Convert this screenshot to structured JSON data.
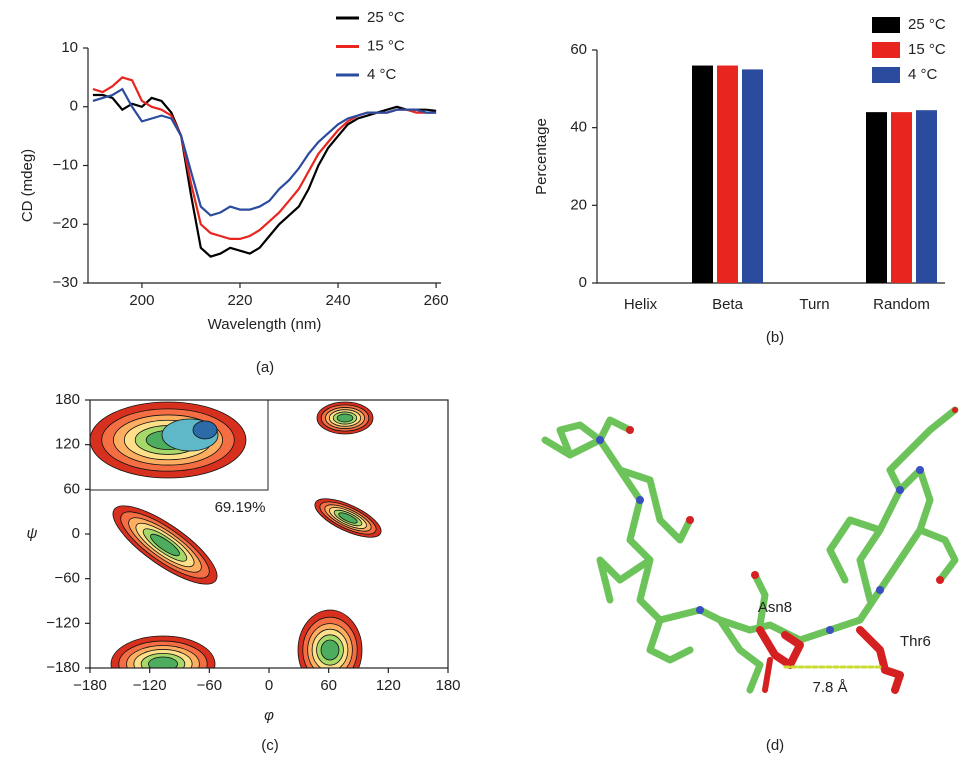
{
  "chart_data": [
    {
      "type": "line",
      "caption": "(a)",
      "x_label": "Wavelength (nm)",
      "y_label": "CD (mdeg)",
      "xlim": [
        189,
        261
      ],
      "ylim": [
        -30,
        10
      ],
      "xticks": [
        200,
        220,
        240,
        260
      ],
      "yticks": [
        {
          "value": -30,
          "label": "−30"
        },
        {
          "value": -20,
          "label": "−20"
        },
        {
          "value": -10,
          "label": "−10"
        },
        0,
        10
      ],
      "legend": "upper right",
      "x": [
        190,
        192,
        194,
        196,
        198,
        200,
        202,
        204,
        206,
        208,
        210,
        212,
        214,
        216,
        218,
        220,
        222,
        224,
        226,
        228,
        230,
        232,
        234,
        236,
        238,
        240,
        242,
        244,
        246,
        248,
        250,
        252,
        254,
        256,
        258,
        260
      ],
      "series": [
        {
          "name": "25 °C",
          "color": "#000000",
          "values": [
            2,
            2,
            1.5,
            -0.5,
            0.5,
            0,
            1.5,
            1,
            -1,
            -5,
            -15,
            -24,
            -25.5,
            -25,
            -24,
            -24.5,
            -25,
            -24,
            -22,
            -20,
            -18.5,
            -17,
            -14,
            -10,
            -7,
            -5,
            -3,
            -2,
            -1.5,
            -1,
            -0.5,
            0,
            -0.5,
            -0.5,
            -0.5,
            -0.7
          ]
        },
        {
          "name": "15 °C",
          "color": "#e8251f",
          "values": [
            3,
            2.5,
            3.5,
            5,
            4.5,
            1,
            0,
            -0.5,
            -1.5,
            -5,
            -13,
            -20,
            -21.5,
            -22,
            -22.5,
            -22.5,
            -22,
            -21,
            -19.5,
            -18,
            -16,
            -14,
            -11,
            -8,
            -6,
            -4,
            -2.5,
            -1.5,
            -1,
            -1,
            -1,
            -0.5,
            -0.5,
            -1,
            -1,
            -1
          ]
        },
        {
          "name": "4 °C",
          "color": "#2b4c9e",
          "values": [
            1,
            1.5,
            2,
            3,
            0,
            -2.5,
            -2,
            -1.5,
            -2,
            -5,
            -11,
            -17,
            -18.5,
            -18,
            -17,
            -17.5,
            -17.5,
            -17,
            -16,
            -14,
            -12.5,
            -10.5,
            -8,
            -6,
            -4.5,
            -3,
            -2,
            -1.5,
            -1,
            -1,
            -1,
            -0.5,
            -0.5,
            -0.5,
            -1,
            -1
          ]
        }
      ]
    },
    {
      "type": "bar",
      "caption": "(b)",
      "y_label": "Percentage",
      "ylim": [
        0,
        60
      ],
      "yticks": [
        0,
        20,
        40,
        60
      ],
      "legend": "upper right",
      "categories": [
        "Helix",
        "Beta",
        "Turn",
        "Random"
      ],
      "series": [
        {
          "name": "25 °C",
          "color": "#000000",
          "values": [
            0,
            56,
            0,
            44
          ]
        },
        {
          "name": "15 °C",
          "color": "#e8251f",
          "values": [
            0,
            56,
            0,
            44
          ]
        },
        {
          "name": "4 °C",
          "color": "#2b4c9e",
          "values": [
            0,
            55,
            0,
            44.5
          ]
        }
      ]
    },
    {
      "type": "contour",
      "caption": "(c)",
      "x_label": "φ",
      "y_label": "ψ",
      "annotation": "69.19%",
      "xlim": [
        -180,
        180
      ],
      "ylim": [
        -180,
        180
      ],
      "xticks": [
        {
          "value": -180,
          "label": "−180"
        },
        {
          "value": -120,
          "label": "−120"
        },
        {
          "value": -60,
          "label": "−60"
        },
        0,
        60,
        120,
        180
      ],
      "yticks": [
        {
          "value": -180,
          "label": "−180"
        },
        {
          "value": -120,
          "label": "−120"
        },
        {
          "value": -60,
          "label": "−60"
        },
        0,
        60,
        120,
        180
      ]
    }
  ],
  "panel_d": {
    "caption": "(d)",
    "labels": [
      "Asn8",
      "Thr6",
      "7.8 Å"
    ]
  }
}
